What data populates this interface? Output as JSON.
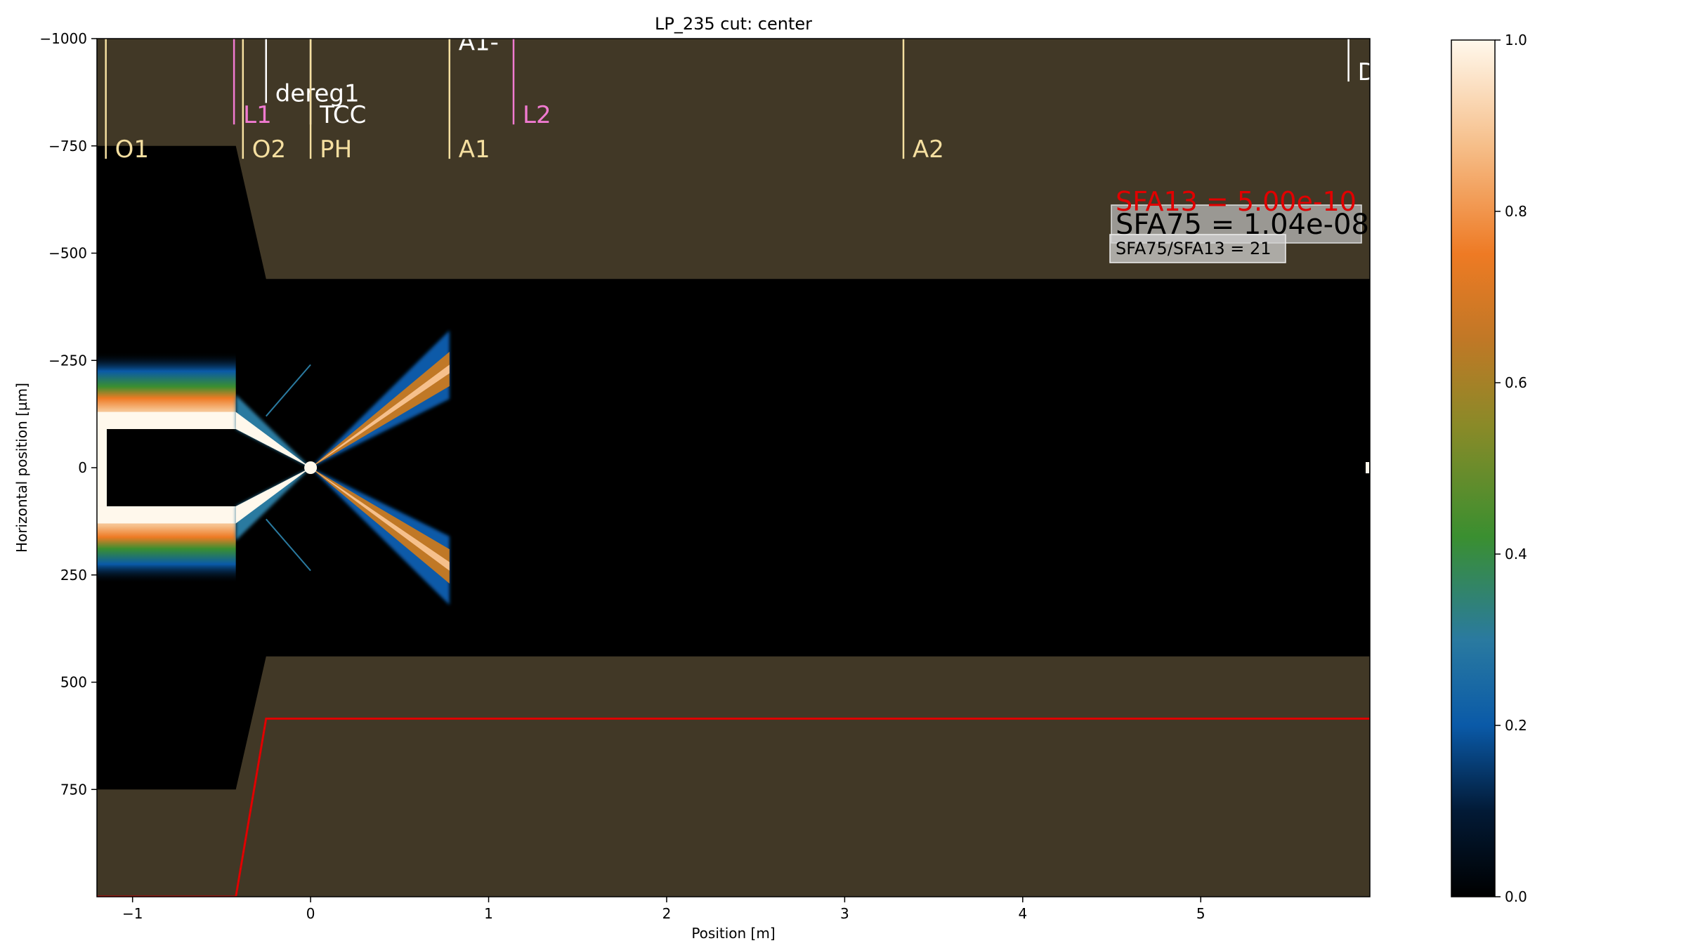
{
  "chart_data": {
    "type": "heatmap",
    "title": "LP_235 cut: center",
    "xlabel": "Position [m]",
    "ylabel": "Horizontal position [µm]",
    "xlim": [
      -1.2,
      5.95
    ],
    "ylim": [
      1000,
      -1000
    ],
    "x_ticks": [
      -1,
      0,
      1,
      2,
      3,
      4,
      5
    ],
    "y_ticks": [
      -1000,
      -750,
      -500,
      -250,
      0,
      250,
      500,
      750
    ],
    "grid": false,
    "colorbar": {
      "range": [
        0.0,
        1.0
      ],
      "ticks": [
        0.0,
        0.2,
        0.4,
        0.6,
        0.8,
        1.0
      ],
      "tick_labels": [
        "0.0",
        "0.2",
        "0.4",
        "0.6",
        "0.8",
        "1.0"
      ],
      "stops": [
        {
          "v": 0.0,
          "color": "#000000"
        },
        {
          "v": 0.1,
          "color": "#021a36"
        },
        {
          "v": 0.2,
          "color": "#0a5aa8"
        },
        {
          "v": 0.3,
          "color": "#2a7aa0"
        },
        {
          "v": 0.42,
          "color": "#3a8f30"
        },
        {
          "v": 0.55,
          "color": "#8a8a28"
        },
        {
          "v": 0.65,
          "color": "#c07826"
        },
        {
          "v": 0.75,
          "color": "#ee7a24"
        },
        {
          "v": 0.88,
          "color": "#f6c08c"
        },
        {
          "v": 1.0,
          "color": "#fff8ec"
        }
      ]
    },
    "colors": {
      "background": "#413826",
      "void": "#000000",
      "envelope_line": "#e00000",
      "label_yellow": "#f5dfa0",
      "label_pink": "#f07ad0",
      "label_white": "#ffffff",
      "sfa13_text": "#e00000"
    },
    "aperture_boundary_um": [
      {
        "x": -1.2,
        "half_width": 750
      },
      {
        "x": -0.42,
        "half_width": 750
      },
      {
        "x": -0.25,
        "half_width": 440
      },
      {
        "x": 5.95,
        "half_width": 440
      }
    ],
    "envelope_line_um": [
      {
        "x": -1.2,
        "y": 1000
      },
      {
        "x": -0.42,
        "y": 1000
      },
      {
        "x": -0.25,
        "y": 585
      },
      {
        "x": 5.95,
        "y": 585
      }
    ],
    "beam": {
      "input_x_range": [
        -1.2,
        -0.42
      ],
      "input_inner_half_width": 90,
      "input_outer_half_width": 130,
      "focus_x": 0.0,
      "output_x_end": 0.78,
      "output_half_width_at_end": 200
    },
    "elements": [
      {
        "label": "O1",
        "x": -1.15,
        "color": "yellow",
        "top_y": -1000,
        "bottom_y": -720
      },
      {
        "label": "L1",
        "x": -0.43,
        "color": "pink",
        "top_y": -1000,
        "bottom_y": -800
      },
      {
        "label": "O2",
        "x": -0.38,
        "color": "yellow",
        "top_y": -1000,
        "bottom_y": -720
      },
      {
        "label": "dereg1",
        "x": -0.25,
        "color": "white",
        "top_y": -1000,
        "bottom_y": -850
      },
      {
        "label": "TCC",
        "x": 0.0,
        "color": "white",
        "top_y": -1000,
        "bottom_y": -800
      },
      {
        "label": "PH",
        "x": 0.0,
        "color": "yellow",
        "top_y": -1000,
        "bottom_y": -720
      },
      {
        "label": "A1-",
        "x": 0.78,
        "color": "white",
        "top_y": -1000,
        "bottom_y": -970
      },
      {
        "label": "A1",
        "x": 0.78,
        "color": "yellow",
        "top_y": -1000,
        "bottom_y": -720
      },
      {
        "label": "L2",
        "x": 1.14,
        "color": "pink",
        "top_y": -1000,
        "bottom_y": -800
      },
      {
        "label": "A2",
        "x": 3.33,
        "color": "yellow",
        "top_y": -1000,
        "bottom_y": -720
      },
      {
        "label": "De",
        "x": 5.83,
        "color": "white",
        "top_y": -1000,
        "bottom_y": -900
      }
    ],
    "annotations": {
      "sfa13": "SFA13 = 5.00e-10",
      "sfa75": "SFA75 = 1.04e-08",
      "ratio": "SFA75/SFA13 = 21"
    }
  }
}
